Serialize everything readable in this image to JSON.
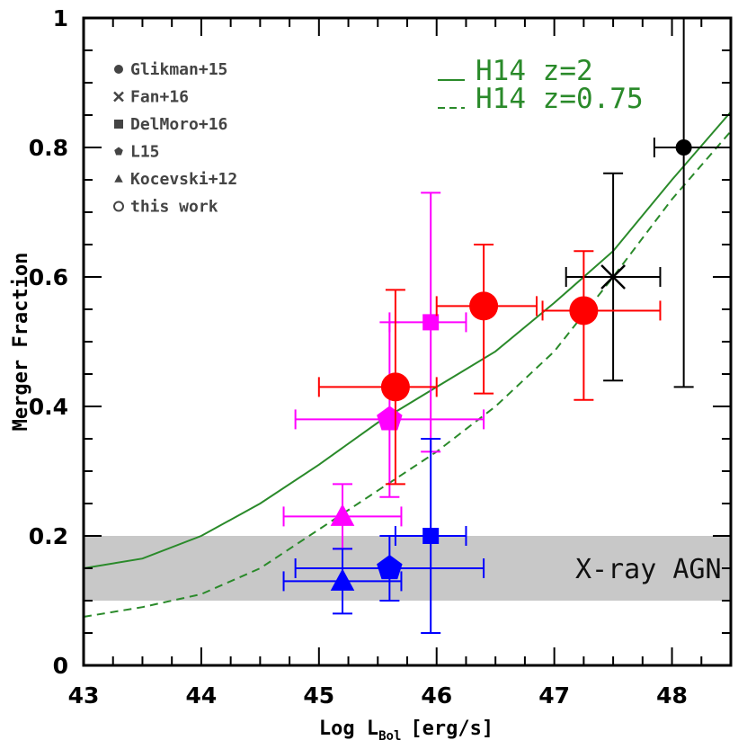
{
  "chart_data": {
    "type": "scatter",
    "xlabel_main": "Log L",
    "xlabel_sub": "Bol",
    "xlabel_unit": "[erg/s]",
    "ylabel": "Merger Fraction",
    "xlim": [
      43,
      48.5
    ],
    "ylim": [
      0,
      1
    ],
    "xticks": [
      "43",
      "44",
      "45",
      "46",
      "47",
      "48"
    ],
    "yticks": [
      "0",
      "0.2",
      "0.4",
      "0.6",
      "0.8",
      "1"
    ],
    "band": {
      "y_low": 0.1,
      "y_high": 0.2,
      "label": "X-ray AGN",
      "color": "#c8c8c8"
    },
    "colors": {
      "green": "#2a8a2a",
      "red": "#ff0000",
      "magenta": "#ff00ff",
      "blue": "#0000ff",
      "black": "#000000"
    },
    "model_curves": [
      {
        "name": "H14 z=2",
        "style": "solid",
        "x": [
          43,
          43.5,
          44,
          44.5,
          45,
          45.5,
          46,
          46.5,
          47,
          47.5,
          48,
          48.5
        ],
        "y": [
          0.15,
          0.165,
          0.2,
          0.25,
          0.31,
          0.375,
          0.43,
          0.485,
          0.56,
          0.64,
          0.75,
          0.855
        ]
      },
      {
        "name": "H14 z=0.75",
        "style": "dashed",
        "x": [
          43,
          43.5,
          44,
          44.5,
          45,
          45.5,
          46,
          46.5,
          47,
          47.5,
          48,
          48.5
        ],
        "y": [
          0.075,
          0.09,
          0.11,
          0.15,
          0.21,
          0.27,
          0.33,
          0.4,
          0.485,
          0.6,
          0.72,
          0.825
        ]
      }
    ],
    "legend": [
      {
        "marker": "circle",
        "label": "Glikman+15"
      },
      {
        "marker": "cross",
        "label": "Fan+16"
      },
      {
        "marker": "square",
        "label": "DelMoro+16"
      },
      {
        "marker": "pentagon",
        "label": "L15"
      },
      {
        "marker": "triangle",
        "label": "Kocevski+12"
      },
      {
        "marker": "open-circle",
        "label": "this work"
      }
    ],
    "points": [
      {
        "series": "Glikman+15",
        "marker": "circle",
        "color": "black",
        "x": 48.1,
        "y": 0.8,
        "xerr": [
          0.25,
          0.4
        ],
        "yerr": [
          0.37,
          0.2
        ]
      },
      {
        "series": "Fan+16",
        "marker": "cross",
        "color": "black",
        "x": 47.5,
        "y": 0.6,
        "xerr": [
          0.4,
          0.4
        ],
        "yerr": [
          0.16,
          0.16
        ]
      },
      {
        "series": "DelMoro+16",
        "marker": "square",
        "color": "magenta",
        "x": 45.95,
        "y": 0.53,
        "xerr": [
          0.35,
          0.3
        ],
        "yerr": [
          0.2,
          0.2
        ]
      },
      {
        "series": "DelMoro+16",
        "marker": "square",
        "color": "blue",
        "x": 45.95,
        "y": 0.2,
        "xerr": [
          0.3,
          0.3
        ],
        "yerr": [
          0.15,
          0.15
        ]
      },
      {
        "series": "L15",
        "marker": "pentagon",
        "color": "magenta",
        "x": 45.6,
        "y": 0.38,
        "xerr": [
          0.8,
          0.8
        ],
        "yerr": [
          0.12,
          0.15
        ]
      },
      {
        "series": "L15",
        "marker": "pentagon",
        "color": "blue",
        "x": 45.6,
        "y": 0.15,
        "xerr": [
          0.8,
          0.8
        ],
        "yerr": [
          0.05,
          0.05
        ]
      },
      {
        "series": "Kocevski+12",
        "marker": "triangle",
        "color": "magenta",
        "x": 45.2,
        "y": 0.23,
        "xerr": [
          0.5,
          0.5
        ],
        "yerr": [
          0.05,
          0.05
        ]
      },
      {
        "series": "Kocevski+12",
        "marker": "triangle",
        "color": "blue",
        "x": 45.2,
        "y": 0.13,
        "xerr": [
          0.5,
          0.5
        ],
        "yerr": [
          0.05,
          0.05
        ]
      },
      {
        "series": "this work",
        "marker": "big-circle",
        "color": "red",
        "x": 45.65,
        "y": 0.43,
        "xerr": [
          0.65,
          0.35
        ],
        "yerr": [
          0.15,
          0.15
        ]
      },
      {
        "series": "this work",
        "marker": "big-circle",
        "color": "red",
        "x": 46.4,
        "y": 0.555,
        "xerr": [
          0.4,
          0.45
        ],
        "yerr": [
          0.135,
          0.095
        ]
      },
      {
        "series": "this work",
        "marker": "big-circle",
        "color": "red",
        "x": 47.25,
        "y": 0.548,
        "xerr": [
          0.35,
          0.65
        ],
        "yerr": [
          0.138,
          0.092
        ]
      }
    ]
  }
}
